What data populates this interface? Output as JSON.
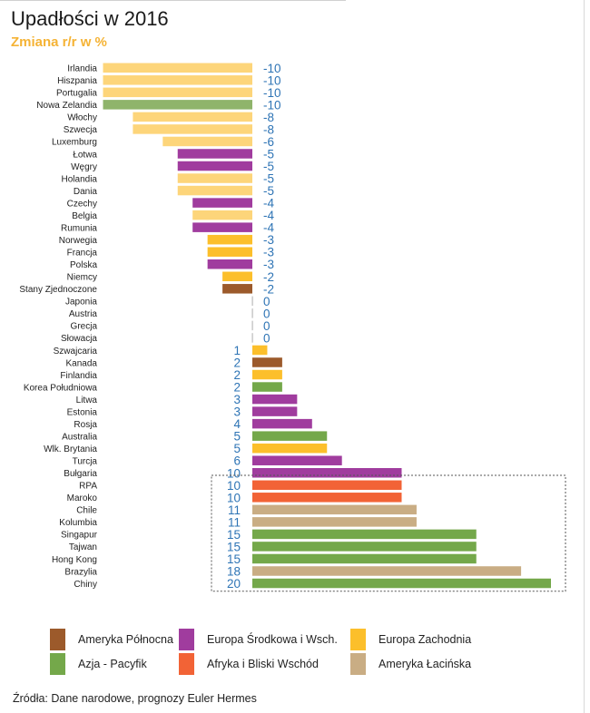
{
  "colors": {
    "Ameryka Północna": "#9c5a2b",
    "Europa Środkowa i Wsch.": "#a03c9e",
    "Europa Zachodnia": "#fcbf2b",
    "Azja - Pacyfik": "#74a84a",
    "Afryka i Bliski Wschód": "#f26336",
    "Ameryka Łacińska": "#c9ad84",
    "value_label": "#2e74b5",
    "europa_zachodnia_light": "#fdd57a",
    "azja_light": "#8fb46b",
    "zero_marker": "#bbbbbb"
  },
  "chart_data": {
    "type": "bar",
    "orientation": "horizontal",
    "title": "Upadłości w 2016",
    "subtitle": "Zmiana r/r w %",
    "xlabel": "",
    "ylabel": "",
    "xlim": [
      -10,
      20
    ],
    "grid": false,
    "legend_position": "bottom",
    "highlight_box": [
      "RPA",
      "Chiny"
    ],
    "categories": [
      "Irlandia",
      "Hiszpania",
      "Portugalia",
      "Nowa Zelandia",
      "Włochy",
      "Szwecja",
      "Luxemburg",
      "Łotwa",
      "Węgry",
      "Holandia",
      "Dania",
      "Czechy",
      "Belgia",
      "Rumunia",
      "Norwegia",
      "Francja",
      "Polska",
      "Niemcy",
      "Stany Zjednoczone",
      "Japonia",
      "Austria",
      "Grecja",
      "Słowacja",
      "Szwajcaria",
      "Kanada",
      "Finlandia",
      "Korea Południowa",
      "Litwa",
      "Estonia",
      "Rosja",
      "Australia",
      "Wlk. Brytania",
      "Turcja",
      "Bułgaria",
      "RPA",
      "Maroko",
      "Chile",
      "Kolumbia",
      "Singapur",
      "Tajwan",
      "Hong Kong",
      "Brazylia",
      "Chiny"
    ],
    "values": [
      -10,
      -10,
      -10,
      -10,
      -8,
      -8,
      -6,
      -5,
      -5,
      -5,
      -5,
      -4,
      -4,
      -4,
      -3,
      -3,
      -3,
      -2,
      -2,
      0,
      0,
      0,
      0,
      1,
      2,
      2,
      2,
      3,
      3,
      4,
      5,
      5,
      6,
      10,
      10,
      10,
      11,
      11,
      15,
      15,
      15,
      18,
      20
    ],
    "regions": [
      "Europa Zachodnia",
      "Europa Zachodnia",
      "Europa Zachodnia",
      "Azja - Pacyfik",
      "Europa Zachodnia",
      "Europa Zachodnia",
      "Europa Zachodnia",
      "Europa Środkowa i Wsch.",
      "Europa Środkowa i Wsch.",
      "Europa Zachodnia",
      "Europa Zachodnia",
      "Europa Środkowa i Wsch.",
      "Europa Zachodnia",
      "Europa Środkowa i Wsch.",
      "Europa Zachodnia",
      "Europa Zachodnia",
      "Europa Środkowa i Wsch.",
      "Europa Zachodnia",
      "Ameryka Północna",
      "Azja - Pacyfik",
      "Europa Zachodnia",
      "Europa Zachodnia",
      "Europa Środkowa i Wsch.",
      "Europa Zachodnia",
      "Ameryka Północna",
      "Europa Zachodnia",
      "Azja - Pacyfik",
      "Europa Środkowa i Wsch.",
      "Europa Środkowa i Wsch.",
      "Europa Środkowa i Wsch.",
      "Azja - Pacyfik",
      "Europa Zachodnia",
      "Europa Środkowa i Wsch.",
      "Europa Środkowa i Wsch.",
      "Afryka i Bliski Wschód",
      "Afryka i Bliski Wschód",
      "Ameryka Łacińska",
      "Ameryka Łacińska",
      "Azja - Pacyfik",
      "Azja - Pacyfik",
      "Azja - Pacyfik",
      "Ameryka Łacińska",
      "Azja - Pacyfik"
    ]
  },
  "legend": {
    "items": [
      {
        "label": "Ameryka Północna"
      },
      {
        "label": "Europa Środkowa i Wsch."
      },
      {
        "label": "Europa Zachodnia"
      },
      {
        "label": "Azja - Pacyfik"
      },
      {
        "label": "Afryka i Bliski Wschód"
      },
      {
        "label": "Ameryka Łacińska"
      }
    ]
  },
  "source": "Źródła: Dane narodowe, prognozy Euler Hermes"
}
